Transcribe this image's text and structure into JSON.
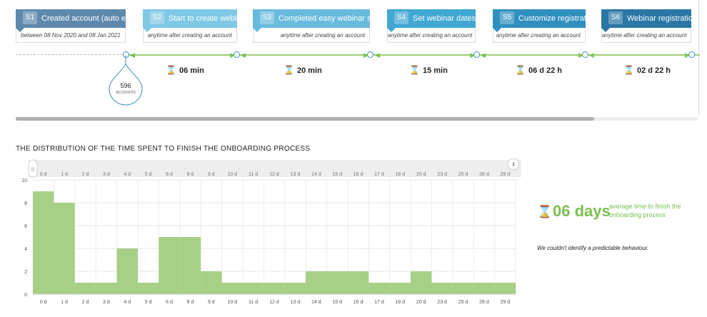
{
  "steps": [
    {
      "num": "S1",
      "label": "Created account (auto event)",
      "sub": "between 08 Nov 2020 and 08 Jan 2021",
      "color": "#5f89ac"
    },
    {
      "num": "S2",
      "label": "Start to create webinar",
      "sub": "anytime after creating an account",
      "color": "#7fc8e6"
    },
    {
      "num": "S3",
      "label": "Completed easy webinar setup",
      "sub": "anytime after creating an account",
      "color": "#68bbde"
    },
    {
      "num": "S4",
      "label": "Set webinar dates",
      "sub": "anytime after creating an account",
      "color": "#41a7d3"
    },
    {
      "num": "S5",
      "label": "Customize registration",
      "sub": "anytime after creating an account",
      "color": "#2f8fbf"
    },
    {
      "num": "S6",
      "label": "Webinar registration",
      "sub": "anytime after creating an account",
      "color": "#2a77a6"
    }
  ],
  "durations": [
    "06 min",
    "20 min",
    "15 min",
    "06 d 22 h",
    "02 d 22 h"
  ],
  "accounts": {
    "count": "596",
    "label": "accounts"
  },
  "distribution": {
    "title": "THE DISTRIBUTION OF THE TIME SPENT TO FINISH THE ONBOARDING PROCESS"
  },
  "average": {
    "value": "06 days",
    "label": "average time to finish the onboarding process"
  },
  "note": "We couldn't identify a predictable behaviour.",
  "chart_data": {
    "type": "bar",
    "categories": [
      "0 d",
      "1 d",
      "2 d",
      "3 d",
      "4 d",
      "5 d",
      "6 d",
      "8 d",
      "9 d",
      "10 d",
      "11 d",
      "12 d",
      "13 d",
      "14 d",
      "15 d",
      "16 d",
      "17 d",
      "18 d",
      "20 d",
      "23 d",
      "25 d",
      "28 d",
      "29 d"
    ],
    "values": [
      9,
      8,
      1,
      1,
      4,
      1,
      5,
      5,
      2,
      1,
      1,
      1,
      1,
      2,
      2,
      2,
      1,
      1,
      2,
      1,
      1,
      1,
      1
    ],
    "ylim": [
      0,
      10
    ],
    "yticks": [
      0,
      2,
      4,
      6,
      8,
      10
    ],
    "grid": true,
    "bar_color": "#a6d085"
  }
}
